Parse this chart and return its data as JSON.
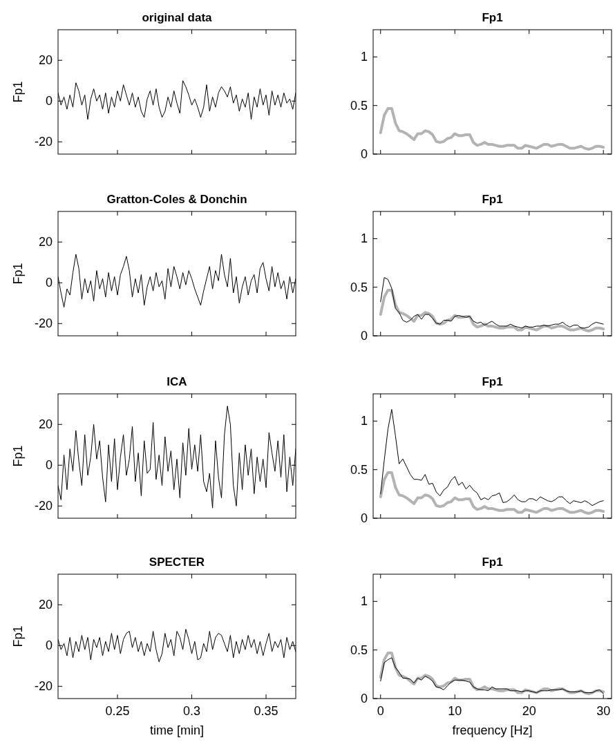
{
  "chart_data": [
    {
      "type": "line",
      "title": "original data",
      "ylabel": "Fp1",
      "xlim": [
        0.21,
        0.37
      ],
      "xticks": [
        0.25,
        0.3,
        0.35
      ],
      "ylim": [
        -26,
        35
      ],
      "yticks": [
        -20,
        0,
        20
      ],
      "tick_labels": "y",
      "legend": false,
      "grid": false,
      "x": [
        0.21,
        0.212,
        0.214,
        0.216,
        0.218,
        0.22,
        0.222,
        0.224,
        0.226,
        0.228,
        0.23,
        0.232,
        0.234,
        0.236,
        0.238,
        0.24,
        0.242,
        0.244,
        0.246,
        0.248,
        0.25,
        0.252,
        0.254,
        0.256,
        0.258,
        0.26,
        0.262,
        0.264,
        0.266,
        0.268,
        0.27,
        0.272,
        0.274,
        0.276,
        0.278,
        0.28,
        0.282,
        0.284,
        0.286,
        0.288,
        0.29,
        0.292,
        0.294,
        0.296,
        0.298,
        0.3,
        0.302,
        0.304,
        0.306,
        0.308,
        0.31,
        0.312,
        0.314,
        0.316,
        0.318,
        0.32,
        0.322,
        0.324,
        0.326,
        0.328,
        0.33,
        0.332,
        0.334,
        0.336,
        0.338,
        0.34,
        0.342,
        0.344,
        0.346,
        0.348,
        0.35,
        0.352,
        0.354,
        0.356,
        0.358,
        0.36,
        0.362,
        0.364,
        0.366,
        0.368,
        0.37
      ],
      "series": [
        {
          "color": "#000000",
          "values": [
            4,
            -2,
            2,
            -4,
            3,
            -3,
            9,
            5,
            -2,
            3,
            -9,
            1,
            6,
            0,
            3,
            -4,
            4,
            -6,
            2,
            -3,
            5,
            0,
            8,
            3,
            -2,
            4,
            -3,
            2,
            -5,
            -8,
            1,
            5,
            -2,
            6,
            -3,
            -8,
            -5,
            2,
            -3,
            5,
            -1,
            -6,
            10,
            7,
            3,
            -2,
            1,
            -3,
            -8,
            -3,
            8,
            -5,
            2,
            -3,
            4,
            7,
            5,
            2,
            7,
            -1,
            3,
            -5,
            1,
            -3,
            4,
            -9,
            2,
            -3,
            6,
            -2,
            3,
            -7,
            5,
            -2,
            3,
            -3,
            4,
            -1,
            1,
            -4,
            4
          ]
        }
      ]
    },
    {
      "type": "line",
      "title": "Fp1",
      "xlim": [
        -1,
        31.1
      ],
      "xticks": [
        0,
        10,
        20,
        30
      ],
      "ylim": [
        0,
        1.28
      ],
      "yticks": [
        0,
        0.5,
        1
      ],
      "tick_labels": "y",
      "legend": false,
      "grid": false,
      "x": [
        0,
        0.5,
        1,
        1.5,
        2,
        2.5,
        3,
        3.5,
        4,
        4.5,
        5,
        5.5,
        6,
        6.5,
        7,
        7.5,
        8,
        8.5,
        9,
        9.5,
        10,
        10.5,
        11,
        11.5,
        12,
        12.5,
        13,
        13.5,
        14,
        14.5,
        15,
        15.5,
        16,
        16.5,
        17,
        17.5,
        18,
        18.5,
        19,
        19.5,
        20,
        20.5,
        21,
        21.5,
        22,
        22.5,
        23,
        23.5,
        24,
        24.5,
        25,
        25.5,
        26,
        26.5,
        27,
        27.5,
        28,
        28.5,
        29,
        29.5,
        30
      ],
      "series": [
        {
          "color": "#b3b3b3",
          "values": [
            0.22,
            0.4,
            0.47,
            0.47,
            0.32,
            0.24,
            0.23,
            0.21,
            0.18,
            0.15,
            0.21,
            0.21,
            0.24,
            0.23,
            0.2,
            0.13,
            0.12,
            0.13,
            0.16,
            0.17,
            0.21,
            0.19,
            0.19,
            0.2,
            0.2,
            0.12,
            0.09,
            0.1,
            0.12,
            0.1,
            0.1,
            0.09,
            0.08,
            0.08,
            0.09,
            0.09,
            0.09,
            0.06,
            0.06,
            0.09,
            0.08,
            0.07,
            0.06,
            0.08,
            0.1,
            0.1,
            0.08,
            0.09,
            0.1,
            0.1,
            0.08,
            0.06,
            0.06,
            0.07,
            0.08,
            0.06,
            0.05,
            0.06,
            0.08,
            0.08,
            0.07
          ]
        }
      ]
    },
    {
      "type": "line",
      "title": "Gratton-Coles & Donchin",
      "ylabel": "Fp1",
      "xlim": [
        0.21,
        0.37
      ],
      "xticks": [
        0.25,
        0.3,
        0.35
      ],
      "ylim": [
        -26,
        35
      ],
      "yticks": [
        -20,
        0,
        20
      ],
      "tick_labels": "y",
      "legend": false,
      "grid": false,
      "x": [
        0.21,
        0.212,
        0.214,
        0.216,
        0.218,
        0.22,
        0.222,
        0.224,
        0.226,
        0.228,
        0.23,
        0.232,
        0.234,
        0.236,
        0.238,
        0.24,
        0.242,
        0.244,
        0.246,
        0.248,
        0.25,
        0.252,
        0.254,
        0.256,
        0.258,
        0.26,
        0.262,
        0.264,
        0.266,
        0.268,
        0.27,
        0.272,
        0.274,
        0.276,
        0.278,
        0.28,
        0.282,
        0.284,
        0.286,
        0.288,
        0.29,
        0.292,
        0.294,
        0.296,
        0.298,
        0.3,
        0.302,
        0.304,
        0.306,
        0.308,
        0.31,
        0.312,
        0.314,
        0.316,
        0.318,
        0.32,
        0.322,
        0.324,
        0.326,
        0.328,
        0.33,
        0.332,
        0.334,
        0.336,
        0.338,
        0.34,
        0.342,
        0.344,
        0.346,
        0.348,
        0.35,
        0.352,
        0.354,
        0.356,
        0.358,
        0.36,
        0.362,
        0.364,
        0.366,
        0.368,
        0.37
      ],
      "series": [
        {
          "color": "#000000",
          "values": [
            3,
            -5,
            -12,
            -3,
            -6,
            5,
            14,
            7,
            -8,
            2,
            -5,
            1,
            -9,
            6,
            -3,
            2,
            -7,
            5,
            -4,
            3,
            -6,
            4,
            8,
            13,
            6,
            -7,
            2,
            -5,
            4,
            -11,
            -2,
            3,
            -4,
            5,
            -2,
            1,
            -8,
            7,
            -2,
            8,
            3,
            -3,
            5,
            -1,
            6,
            2,
            -3,
            -7,
            -11,
            -4,
            2,
            8,
            -3,
            6,
            1,
            14,
            4,
            -2,
            12,
            -5,
            3,
            -10,
            -2,
            3,
            -6,
            1,
            4,
            -5,
            7,
            10,
            2,
            -4,
            8,
            -2,
            5,
            -3,
            1,
            -8,
            3,
            -5,
            2
          ]
        }
      ]
    },
    {
      "type": "line",
      "title": "Fp1",
      "xlim": [
        -1,
        31.1
      ],
      "xticks": [
        0,
        10,
        20,
        30
      ],
      "ylim": [
        0,
        1.28
      ],
      "yticks": [
        0,
        0.5,
        1
      ],
      "tick_labels": "y",
      "legend": false,
      "grid": false,
      "x": [
        0,
        0.5,
        1,
        1.5,
        2,
        2.5,
        3,
        3.5,
        4,
        4.5,
        5,
        5.5,
        6,
        6.5,
        7,
        7.5,
        8,
        8.5,
        9,
        9.5,
        10,
        10.5,
        11,
        11.5,
        12,
        12.5,
        13,
        13.5,
        14,
        14.5,
        15,
        15.5,
        16,
        16.5,
        17,
        17.5,
        18,
        18.5,
        19,
        19.5,
        20,
        20.5,
        21,
        21.5,
        22,
        22.5,
        23,
        23.5,
        24,
        24.5,
        25,
        25.5,
        26,
        26.5,
        27,
        27.5,
        28,
        28.5,
        29,
        29.5,
        30
      ],
      "series": [
        {
          "color": "#b3b3b3",
          "values": [
            0.22,
            0.4,
            0.47,
            0.47,
            0.32,
            0.24,
            0.23,
            0.21,
            0.18,
            0.15,
            0.21,
            0.21,
            0.24,
            0.23,
            0.2,
            0.13,
            0.12,
            0.13,
            0.16,
            0.17,
            0.21,
            0.19,
            0.19,
            0.2,
            0.2,
            0.12,
            0.09,
            0.1,
            0.12,
            0.1,
            0.1,
            0.09,
            0.08,
            0.08,
            0.09,
            0.09,
            0.09,
            0.06,
            0.06,
            0.09,
            0.08,
            0.07,
            0.06,
            0.08,
            0.1,
            0.1,
            0.08,
            0.09,
            0.1,
            0.1,
            0.08,
            0.06,
            0.06,
            0.07,
            0.08,
            0.06,
            0.05,
            0.06,
            0.08,
            0.08,
            0.07
          ]
        },
        {
          "color": "#000000",
          "values": [
            0.35,
            0.6,
            0.58,
            0.49,
            0.28,
            0.24,
            0.16,
            0.14,
            0.16,
            0.2,
            0.22,
            0.17,
            0.22,
            0.22,
            0.18,
            0.13,
            0.12,
            0.16,
            0.16,
            0.15,
            0.2,
            0.21,
            0.2,
            0.19,
            0.2,
            0.15,
            0.13,
            0.14,
            0.11,
            0.13,
            0.15,
            0.12,
            0.1,
            0.1,
            0.1,
            0.12,
            0.1,
            0.09,
            0.08,
            0.1,
            0.09,
            0.09,
            0.1,
            0.1,
            0.11,
            0.1,
            0.11,
            0.12,
            0.12,
            0.14,
            0.11,
            0.09,
            0.11,
            0.11,
            0.08,
            0.08,
            0.09,
            0.12,
            0.14,
            0.13,
            0.12
          ]
        }
      ]
    },
    {
      "type": "line",
      "title": "ICA",
      "ylabel": "Fp1",
      "xlim": [
        0.21,
        0.37
      ],
      "xticks": [
        0.25,
        0.3,
        0.35
      ],
      "ylim": [
        -26,
        35
      ],
      "yticks": [
        -20,
        0,
        20
      ],
      "tick_labels": "y",
      "legend": false,
      "grid": false,
      "x": [
        0.21,
        0.212,
        0.214,
        0.216,
        0.218,
        0.22,
        0.222,
        0.224,
        0.226,
        0.228,
        0.23,
        0.232,
        0.234,
        0.236,
        0.238,
        0.24,
        0.242,
        0.244,
        0.246,
        0.248,
        0.25,
        0.252,
        0.254,
        0.256,
        0.258,
        0.26,
        0.262,
        0.264,
        0.266,
        0.268,
        0.27,
        0.272,
        0.274,
        0.276,
        0.278,
        0.28,
        0.282,
        0.284,
        0.286,
        0.288,
        0.29,
        0.292,
        0.294,
        0.296,
        0.298,
        0.3,
        0.302,
        0.304,
        0.306,
        0.308,
        0.31,
        0.312,
        0.314,
        0.316,
        0.318,
        0.32,
        0.322,
        0.324,
        0.326,
        0.328,
        0.33,
        0.332,
        0.334,
        0.336,
        0.338,
        0.34,
        0.342,
        0.344,
        0.346,
        0.348,
        0.35,
        0.352,
        0.354,
        0.356,
        0.358,
        0.36,
        0.362,
        0.364,
        0.366,
        0.368,
        0.37
      ],
      "series": [
        {
          "color": "#000000",
          "values": [
            -10,
            -17,
            5,
            -12,
            8,
            -3,
            17,
            2,
            -10,
            15,
            -5,
            4,
            20,
            3,
            12,
            -6,
            -18,
            10,
            -8,
            13,
            -12,
            4,
            15,
            -5,
            3,
            19,
            -8,
            6,
            -15,
            12,
            -4,
            -2,
            21,
            -7,
            5,
            -10,
            14,
            -3,
            7,
            -12,
            3,
            -16,
            11,
            -5,
            18,
            -2,
            10,
            -3,
            15,
            -8,
            -13,
            -4,
            -21,
            12,
            -6,
            -16,
            15,
            29,
            20,
            -10,
            -20,
            6,
            -12,
            10,
            -5,
            8,
            -14,
            4,
            -8,
            3,
            -11,
            16,
            6,
            -3,
            12,
            -6,
            15,
            -13,
            4,
            -10,
            8
          ]
        }
      ]
    },
    {
      "type": "line",
      "title": "Fp1",
      "xlim": [
        -1,
        31.1
      ],
      "xticks": [
        0,
        10,
        20,
        30
      ],
      "ylim": [
        0,
        1.28
      ],
      "yticks": [
        0,
        0.5,
        1
      ],
      "tick_labels": "y",
      "legend": false,
      "grid": false,
      "x": [
        0,
        0.5,
        1,
        1.5,
        2,
        2.5,
        3,
        3.5,
        4,
        4.5,
        5,
        5.5,
        6,
        6.5,
        7,
        7.5,
        8,
        8.5,
        9,
        9.5,
        10,
        10.5,
        11,
        11.5,
        12,
        12.5,
        13,
        13.5,
        14,
        14.5,
        15,
        15.5,
        16,
        16.5,
        17,
        17.5,
        18,
        18.5,
        19,
        19.5,
        20,
        20.5,
        21,
        21.5,
        22,
        22.5,
        23,
        23.5,
        24,
        24.5,
        25,
        25.5,
        26,
        26.5,
        27,
        27.5,
        28,
        28.5,
        29,
        29.5,
        30
      ],
      "series": [
        {
          "color": "#b3b3b3",
          "values": [
            0.22,
            0.4,
            0.47,
            0.47,
            0.32,
            0.24,
            0.23,
            0.21,
            0.18,
            0.15,
            0.21,
            0.21,
            0.24,
            0.23,
            0.2,
            0.13,
            0.12,
            0.13,
            0.16,
            0.17,
            0.21,
            0.19,
            0.19,
            0.2,
            0.2,
            0.12,
            0.09,
            0.1,
            0.12,
            0.1,
            0.1,
            0.09,
            0.08,
            0.08,
            0.09,
            0.09,
            0.09,
            0.06,
            0.06,
            0.09,
            0.08,
            0.07,
            0.06,
            0.08,
            0.1,
            0.1,
            0.08,
            0.09,
            0.1,
            0.1,
            0.08,
            0.06,
            0.06,
            0.07,
            0.08,
            0.06,
            0.05,
            0.06,
            0.08,
            0.08,
            0.07
          ]
        },
        {
          "color": "#000000",
          "values": [
            0.25,
            0.6,
            0.92,
            1.12,
            0.85,
            0.56,
            0.61,
            0.53,
            0.45,
            0.4,
            0.4,
            0.39,
            0.45,
            0.35,
            0.36,
            0.27,
            0.23,
            0.29,
            0.32,
            0.39,
            0.43,
            0.34,
            0.37,
            0.3,
            0.34,
            0.29,
            0.26,
            0.19,
            0.21,
            0.19,
            0.23,
            0.24,
            0.26,
            0.16,
            0.17,
            0.2,
            0.24,
            0.19,
            0.17,
            0.17,
            0.2,
            0.2,
            0.18,
            0.22,
            0.2,
            0.18,
            0.17,
            0.19,
            0.22,
            0.22,
            0.18,
            0.15,
            0.18,
            0.17,
            0.16,
            0.18,
            0.16,
            0.13,
            0.15,
            0.17,
            0.18
          ]
        }
      ]
    },
    {
      "type": "line",
      "title": "SPECTER",
      "ylabel": "Fp1",
      "xlabel": "time [min]",
      "xlim": [
        0.21,
        0.37
      ],
      "xticks": [
        0.25,
        0.3,
        0.35
      ],
      "ylim": [
        -26,
        35
      ],
      "yticks": [
        -20,
        0,
        20
      ],
      "legend": false,
      "grid": false,
      "x": [
        0.21,
        0.212,
        0.214,
        0.216,
        0.218,
        0.22,
        0.222,
        0.224,
        0.226,
        0.228,
        0.23,
        0.232,
        0.234,
        0.236,
        0.238,
        0.24,
        0.242,
        0.244,
        0.246,
        0.248,
        0.25,
        0.252,
        0.254,
        0.256,
        0.258,
        0.26,
        0.262,
        0.264,
        0.266,
        0.268,
        0.27,
        0.272,
        0.274,
        0.276,
        0.278,
        0.28,
        0.282,
        0.284,
        0.286,
        0.288,
        0.29,
        0.292,
        0.294,
        0.296,
        0.298,
        0.3,
        0.302,
        0.304,
        0.306,
        0.308,
        0.31,
        0.312,
        0.314,
        0.316,
        0.318,
        0.32,
        0.322,
        0.324,
        0.326,
        0.328,
        0.33,
        0.332,
        0.334,
        0.336,
        0.338,
        0.34,
        0.342,
        0.344,
        0.346,
        0.348,
        0.35,
        0.352,
        0.354,
        0.356,
        0.358,
        0.36,
        0.362,
        0.364,
        0.366,
        0.368,
        0.37
      ],
      "series": [
        {
          "color": "#000000",
          "values": [
            3,
            -2,
            1,
            -5,
            4,
            -6,
            2,
            -3,
            5,
            -2,
            4,
            -7,
            3,
            -1,
            4,
            -5,
            2,
            -3,
            6,
            -2,
            5,
            -4,
            3,
            6,
            7,
            -1,
            4,
            -3,
            2,
            -5,
            1,
            -3,
            7,
            -2,
            -8,
            -4,
            6,
            -1,
            3,
            -5,
            7,
            4,
            -2,
            8,
            3,
            -4,
            2,
            -7,
            -6,
            1,
            -3,
            7,
            -2,
            4,
            6,
            5,
            1,
            -3,
            5,
            -6,
            2,
            -4,
            3,
            -2,
            5,
            -1,
            3,
            -4,
            2,
            -5,
            1,
            6,
            -3,
            2,
            -1,
            3,
            -6,
            4,
            -2,
            2,
            -3
          ]
        }
      ]
    },
    {
      "type": "line",
      "title": "Fp1",
      "xlabel": "frequency [Hz]",
      "xlim": [
        -1,
        31.1
      ],
      "xticks": [
        0,
        10,
        20,
        30
      ],
      "ylim": [
        0,
        1.28
      ],
      "yticks": [
        0,
        0.5,
        1
      ],
      "legend": false,
      "grid": false,
      "x": [
        0,
        0.5,
        1,
        1.5,
        2,
        2.5,
        3,
        3.5,
        4,
        4.5,
        5,
        5.5,
        6,
        6.5,
        7,
        7.5,
        8,
        8.5,
        9,
        9.5,
        10,
        10.5,
        11,
        11.5,
        12,
        12.5,
        13,
        13.5,
        14,
        14.5,
        15,
        15.5,
        16,
        16.5,
        17,
        17.5,
        18,
        18.5,
        19,
        19.5,
        20,
        20.5,
        21,
        21.5,
        22,
        22.5,
        23,
        23.5,
        24,
        24.5,
        25,
        25.5,
        26,
        26.5,
        27,
        27.5,
        28,
        28.5,
        29,
        29.5,
        30
      ],
      "series": [
        {
          "color": "#b3b3b3",
          "values": [
            0.22,
            0.4,
            0.47,
            0.47,
            0.32,
            0.24,
            0.23,
            0.21,
            0.18,
            0.15,
            0.21,
            0.21,
            0.24,
            0.23,
            0.2,
            0.13,
            0.12,
            0.13,
            0.16,
            0.17,
            0.21,
            0.19,
            0.19,
            0.2,
            0.2,
            0.12,
            0.09,
            0.1,
            0.12,
            0.1,
            0.1,
            0.09,
            0.08,
            0.08,
            0.09,
            0.09,
            0.09,
            0.06,
            0.06,
            0.09,
            0.08,
            0.07,
            0.06,
            0.08,
            0.1,
            0.1,
            0.08,
            0.09,
            0.1,
            0.1,
            0.08,
            0.06,
            0.06,
            0.07,
            0.08,
            0.06,
            0.05,
            0.06,
            0.08,
            0.08,
            0.07
          ]
        },
        {
          "color": "#000000",
          "values": [
            0.18,
            0.37,
            0.4,
            0.42,
            0.32,
            0.27,
            0.21,
            0.21,
            0.2,
            0.16,
            0.21,
            0.19,
            0.23,
            0.21,
            0.18,
            0.12,
            0.11,
            0.09,
            0.13,
            0.17,
            0.19,
            0.19,
            0.19,
            0.18,
            0.17,
            0.12,
            0.1,
            0.09,
            0.09,
            0.08,
            0.12,
            0.1,
            0.1,
            0.1,
            0.1,
            0.08,
            0.08,
            0.08,
            0.07,
            0.08,
            0.08,
            0.07,
            0.06,
            0.08,
            0.08,
            0.08,
            0.09,
            0.09,
            0.09,
            0.1,
            0.08,
            0.07,
            0.07,
            0.07,
            0.08,
            0.06,
            0.06,
            0.06,
            0.08,
            0.09,
            0.05
          ]
        }
      ]
    }
  ]
}
